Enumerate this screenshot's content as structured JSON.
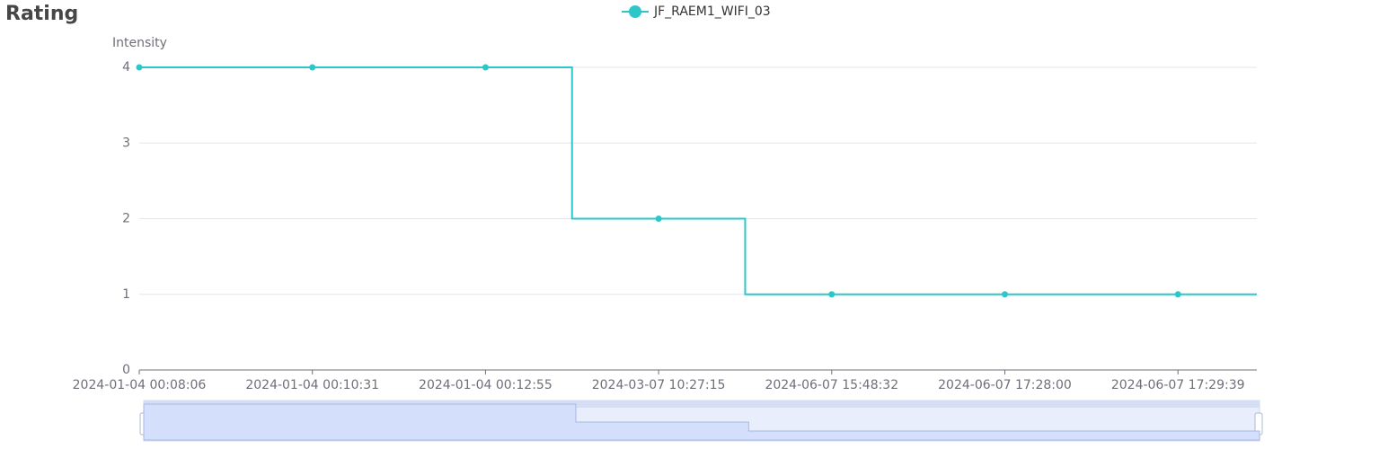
{
  "chart_data": {
    "type": "line",
    "step": true,
    "title": "Rating",
    "y_label": "Intensity",
    "categories": [
      "2024-01-04 00:08:06",
      "2024-01-04 00:10:31",
      "2024-01-04 00:12:55",
      "2024-03-07 10:27:15",
      "2024-06-07 15:48:32",
      "2024-06-07 17:28:00",
      "2024-06-07 17:29:39"
    ],
    "series": [
      {
        "name": "JF_RAEM1_WIFI_03",
        "color": "#2ec7c9",
        "values": [
          4,
          4,
          4,
          2,
          1,
          1,
          1
        ]
      }
    ],
    "ylim": [
      0,
      4
    ],
    "yticks": [
      0,
      1,
      2,
      3,
      4
    ],
    "grid": true,
    "legend": "top"
  }
}
